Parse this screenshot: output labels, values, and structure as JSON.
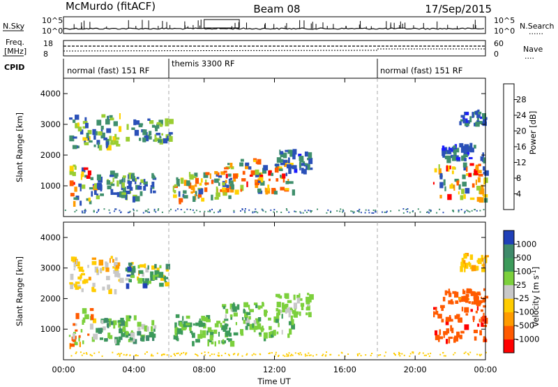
{
  "header": {
    "station": "McMurdo (fitACF)",
    "beam": "Beam 08",
    "date": "17/Sep/2015"
  },
  "side_labels": {
    "nsky": "N.Sky",
    "freq_top": "Freq.",
    "freq_unit": "[MHz]",
    "cpid": "CPID",
    "nsearch": "N.Search",
    "nave": "Nave",
    "dots": "......",
    "dots_short": "...."
  },
  "sky_axis": {
    "left_top": "10^5",
    "left_bottom": "10^0",
    "right_top": "10^5",
    "right_bottom": "10^0"
  },
  "freq_axis": {
    "left_top": "18",
    "left_bottom": "8",
    "right_top": "60",
    "right_bottom": "0"
  },
  "cpid_segments": [
    {
      "label": "normal (fast) 151 RF",
      "start": 0,
      "end": 6
    },
    {
      "label": "themis 3300 RF",
      "start": 6,
      "end": 18
    },
    {
      "label": "normal (fast) 151 RF",
      "start": 18,
      "end": 24
    }
  ],
  "x_axis": {
    "label": "Time UT",
    "ticks": [
      "00:00",
      "04:00",
      "08:00",
      "12:00",
      "16:00",
      "20:00",
      "00:00"
    ],
    "range_hours": [
      0,
      24
    ]
  },
  "colors": {
    "power": [
      "#1a1aff",
      "#2a50b8",
      "#3f8f6c",
      "#9acd32",
      "#ffd200",
      "#ff9b00",
      "#ff5a00",
      "#ff0000"
    ],
    "velocity": [
      "#ff0000",
      "#ff5a00",
      "#ff9b00",
      "#ffcc00",
      "#c8c8c8",
      "#7cd03c",
      "#3c9a5a",
      "#3f8a6a",
      "#2040b8"
    ]
  },
  "chart_data": [
    {
      "type": "heatmap",
      "name": "power",
      "ylabel": "Slant Range [km]",
      "ylim": [
        0,
        4500
      ],
      "yticks": [
        "1000",
        "2000",
        "3000",
        "4000"
      ],
      "colorbar": {
        "label": "Power [dB]",
        "ticks": [
          "4",
          "8",
          "12",
          "16",
          "20",
          "24",
          "28"
        ],
        "range": [
          0,
          32
        ]
      },
      "regions": [
        {
          "t0": 0.3,
          "t1": 1.8,
          "r0": 500,
          "r1": 1700,
          "lo": 3,
          "hi": 30
        },
        {
          "t0": 0.3,
          "t1": 3.2,
          "r0": 2300,
          "r1": 3400,
          "lo": 4,
          "hi": 18
        },
        {
          "t0": 1.8,
          "t1": 5.2,
          "r0": 650,
          "r1": 1500,
          "lo": 4,
          "hi": 14
        },
        {
          "t0": 3.5,
          "t1": 6.0,
          "r0": 2500,
          "r1": 3200,
          "lo": 4,
          "hi": 16
        },
        {
          "t0": 6.2,
          "t1": 9.5,
          "r0": 600,
          "r1": 1500,
          "lo": 5,
          "hi": 28
        },
        {
          "t0": 9.0,
          "t1": 13.0,
          "r0": 800,
          "r1": 1900,
          "lo": 6,
          "hi": 30
        },
        {
          "t0": 12.0,
          "t1": 14.0,
          "r0": 1500,
          "r1": 2200,
          "lo": 3,
          "hi": 12
        },
        {
          "t0": 21.0,
          "t1": 24.0,
          "r0": 600,
          "r1": 1800,
          "lo": 4,
          "hi": 30
        },
        {
          "t0": 21.5,
          "t1": 24.0,
          "r0": 1900,
          "r1": 2400,
          "lo": 3,
          "hi": 12
        },
        {
          "t0": 22.5,
          "t1": 24.0,
          "r0": 3000,
          "r1": 3500,
          "lo": 3,
          "hi": 10
        }
      ]
    },
    {
      "type": "heatmap",
      "name": "velocity",
      "ylabel": "Slant Range [km]",
      "ylim": [
        0,
        4500
      ],
      "yticks": [
        "1000",
        "2000",
        "3000",
        "4000"
      ],
      "colorbar": {
        "label": "Velocity [m s^-1]",
        "ticks": [
          "1000",
          "500",
          "100",
          "25",
          "-25",
          "-100",
          "-500",
          "-1000"
        ],
        "range": [
          -1000,
          1000
        ]
      },
      "regions": [
        {
          "t0": 0.3,
          "t1": 1.8,
          "r0": 500,
          "r1": 1700,
          "lo": -300,
          "hi": 300
        },
        {
          "t0": 0.3,
          "t1": 3.2,
          "r0": 2300,
          "r1": 3400,
          "lo": -40,
          "hi": 60
        },
        {
          "t0": 1.8,
          "t1": 5.2,
          "r0": 650,
          "r1": 1500,
          "lo": 50,
          "hi": 600
        },
        {
          "t0": 3.5,
          "t1": 6.0,
          "r0": 2500,
          "r1": 3200,
          "lo": -50,
          "hi": 900
        },
        {
          "t0": 6.2,
          "t1": 9.5,
          "r0": 600,
          "r1": 1500,
          "lo": 100,
          "hi": 500
        },
        {
          "t0": 9.0,
          "t1": 13.0,
          "r0": 800,
          "r1": 1900,
          "lo": 80,
          "hi": 400
        },
        {
          "t0": 12.0,
          "t1": 14.0,
          "r0": 1500,
          "r1": 2200,
          "lo": 60,
          "hi": 300
        },
        {
          "t0": 21.0,
          "t1": 24.0,
          "r0": 600,
          "r1": 1800,
          "lo": -600,
          "hi": -100
        },
        {
          "t0": 21.5,
          "t1": 24.0,
          "r0": 1900,
          "r1": 2400,
          "lo": -300,
          "hi": -80
        },
        {
          "t0": 22.5,
          "t1": 24.0,
          "r0": 3000,
          "r1": 3500,
          "lo": -30,
          "hi": 30
        }
      ]
    }
  ]
}
